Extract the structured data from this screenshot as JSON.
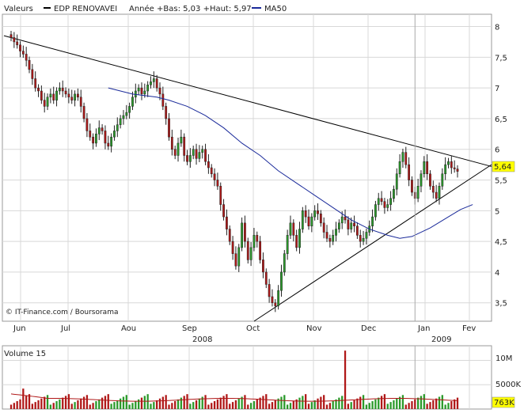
{
  "header": {
    "valeurs_label": "Valeurs",
    "series_name": "EDP RENOVAVEI",
    "stats_text": "Année +Bas: 5,03 +Haut: 5,97",
    "ma_label": "MA50"
  },
  "watermark": "© IT-Finance.com / Boursorama",
  "volume_title": "Volume 15",
  "colors": {
    "up": "#2a9a2a",
    "down": "#b01818",
    "ma": "#1a2a9a",
    "grid": "#d8d8d8",
    "price_box": "#ffff00",
    "vol_ma": "#b01818"
  },
  "chart_data": [
    {
      "type": "candlestick",
      "title": "EDP RENOVAVEI",
      "ylim": [
        3.2,
        8.2
      ],
      "yticks": [
        "8",
        "7,5",
        "7",
        "6,5",
        "6",
        "5,5",
        "5",
        "4,5",
        "4",
        "3,5"
      ],
      "ytick_values": [
        8,
        7.5,
        7,
        6.5,
        6,
        5.5,
        5,
        4.5,
        4,
        3.5
      ],
      "x_months": [
        "Jun",
        "Jul",
        "Aou",
        "Sep",
        "Oct",
        "Nov",
        "Dec",
        "Jan",
        "Fev"
      ],
      "x_years": [
        "2008",
        "2009"
      ],
      "last_price_label": "5,64",
      "last_price": 5.64,
      "legend_placement": "top-left",
      "grid": true,
      "closes": [
        7.82,
        7.75,
        7.7,
        7.6,
        7.55,
        7.45,
        7.3,
        7.15,
        7.0,
        6.95,
        6.8,
        6.7,
        6.85,
        6.9,
        6.8,
        6.95,
        7.0,
        6.95,
        6.9,
        6.85,
        6.8,
        6.9,
        6.85,
        6.7,
        6.5,
        6.3,
        6.2,
        6.1,
        6.25,
        6.35,
        6.3,
        6.1,
        6.05,
        6.2,
        6.3,
        6.4,
        6.5,
        6.55,
        6.6,
        6.7,
        6.85,
        6.95,
        7.0,
        6.9,
        6.95,
        7.05,
        7.1,
        7.15,
        7.0,
        6.9,
        6.7,
        6.5,
        6.2,
        6.0,
        5.9,
        6.1,
        6.2,
        5.9,
        5.8,
        5.9,
        6.0,
        5.85,
        5.95,
        6.0,
        5.8,
        5.7,
        5.6,
        5.5,
        5.4,
        5.1,
        4.9,
        4.7,
        4.5,
        4.3,
        4.1,
        4.4,
        4.8,
        4.5,
        4.2,
        4.4,
        4.6,
        4.5,
        4.2,
        4.0,
        3.8,
        3.6,
        3.5,
        3.45,
        3.7,
        4.0,
        4.3,
        4.6,
        4.8,
        4.6,
        4.4,
        4.7,
        5.0,
        4.9,
        4.75,
        4.9,
        5.0,
        4.95,
        4.8,
        4.65,
        4.55,
        4.5,
        4.6,
        4.7,
        4.8,
        4.9,
        4.85,
        4.7,
        4.8,
        4.75,
        4.6,
        4.5,
        4.55,
        4.65,
        4.75,
        4.9,
        5.1,
        5.2,
        5.15,
        5.05,
        5.1,
        5.2,
        5.35,
        5.6,
        5.8,
        5.95,
        5.75,
        5.5,
        5.3,
        5.2,
        5.4,
        5.6,
        5.8,
        5.6,
        5.4,
        5.3,
        5.2,
        5.4,
        5.6,
        5.75,
        5.8,
        5.7,
        5.68,
        5.64
      ],
      "ma50": [
        [
          32,
          7.0
        ],
        [
          40,
          6.9
        ],
        [
          48,
          6.85
        ],
        [
          52,
          6.8
        ],
        [
          58,
          6.7
        ],
        [
          64,
          6.55
        ],
        [
          70,
          6.35
        ],
        [
          76,
          6.1
        ],
        [
          82,
          5.9
        ],
        [
          88,
          5.65
        ],
        [
          94,
          5.45
        ],
        [
          100,
          5.25
        ],
        [
          106,
          5.05
        ],
        [
          112,
          4.85
        ],
        [
          118,
          4.7
        ],
        [
          124,
          4.6
        ],
        [
          128,
          4.55
        ],
        [
          132,
          4.58
        ],
        [
          138,
          4.72
        ],
        [
          144,
          4.9
        ],
        [
          148,
          5.02
        ],
        [
          152,
          5.1
        ]
      ],
      "trendlines": [
        {
          "name": "resistance",
          "from": [
            0,
            7.85
          ],
          "to": [
            160,
            5.72
          ]
        },
        {
          "name": "support",
          "from": [
            80,
            3.2
          ],
          "to": [
            160,
            5.75
          ]
        }
      ],
      "vertical_marker": 133
    },
    {
      "type": "bar",
      "title": "Volume 15",
      "yticks": [
        "10M",
        "5000K"
      ],
      "ytick_values": [
        10000000,
        5000000
      ],
      "ylim": [
        0,
        13000000
      ],
      "last_volume_label": "763K",
      "volume_ma_label": ""
    }
  ]
}
